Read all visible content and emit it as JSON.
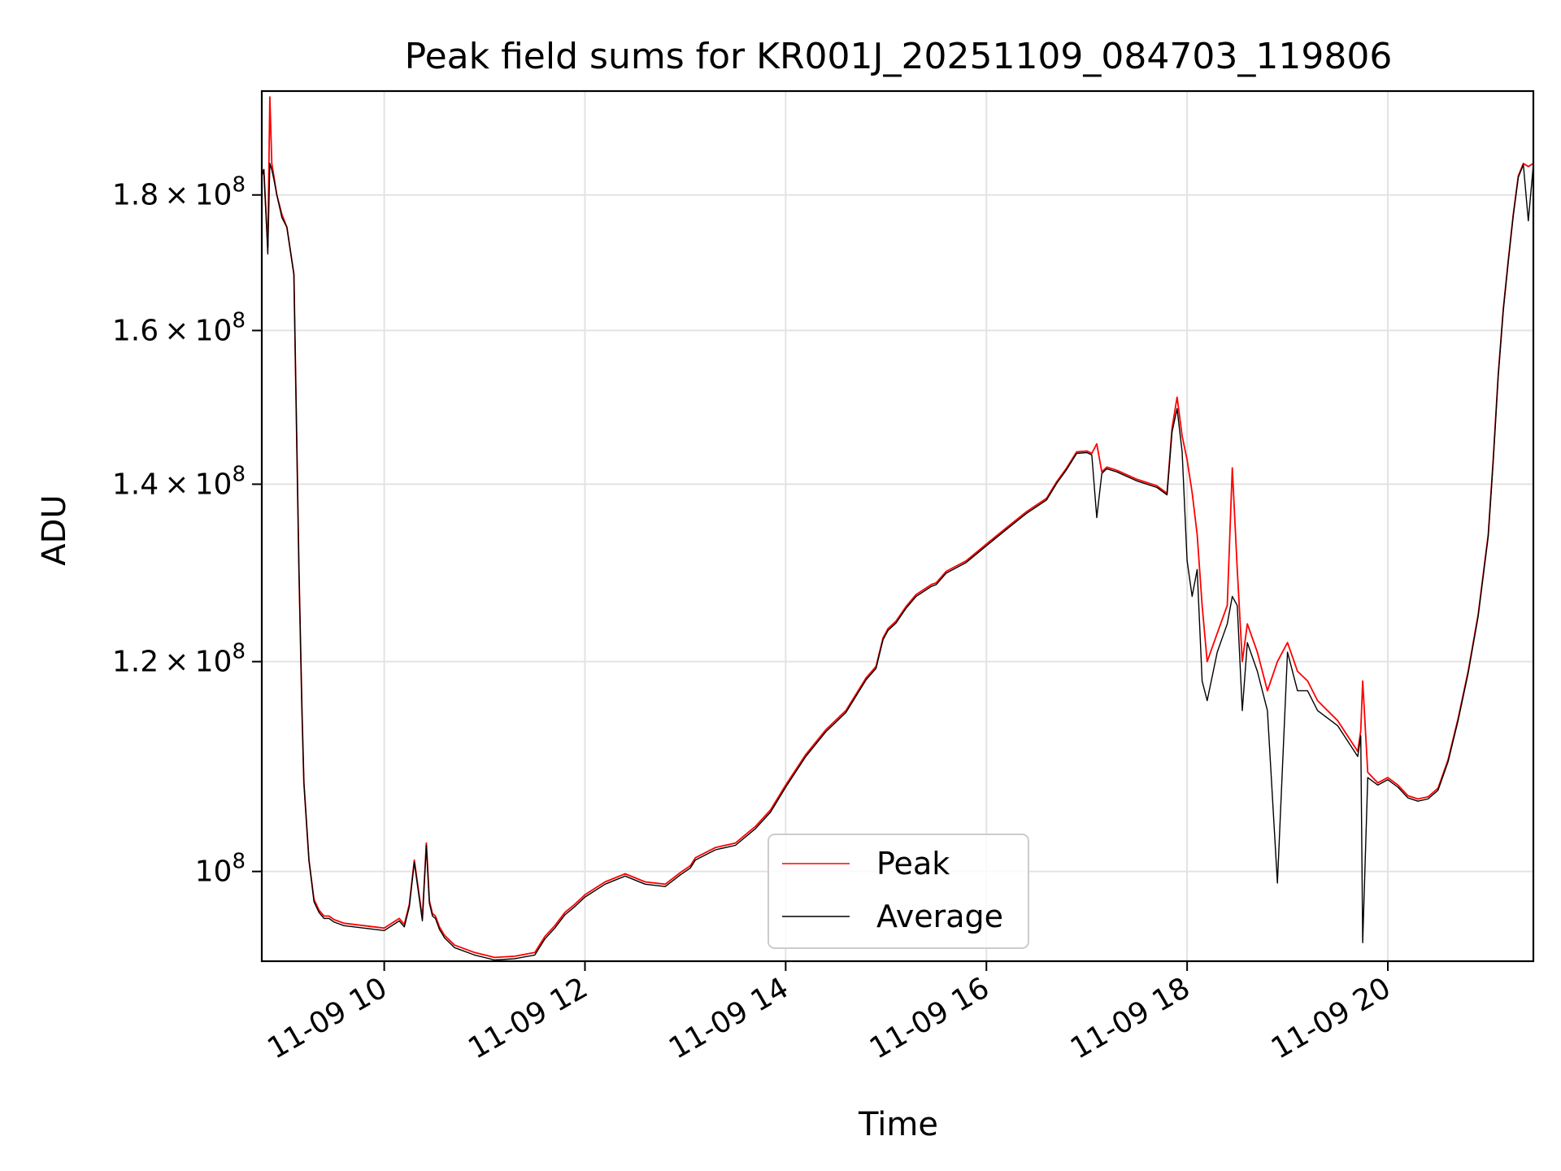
{
  "chart_data": {
    "type": "line",
    "title": "Peak field sums for KR001J_20251109_084703_119806",
    "xlabel": "Time",
    "ylabel": "ADU",
    "x_unit": "hours since 2025-11-09 00:00",
    "xlim": [
      8.78,
      21.45
    ],
    "ylim": [
      92500000,
      197000000
    ],
    "yscale": "log",
    "grid": true,
    "legend_position": "lower-center",
    "x_ticks": [
      {
        "value": 10,
        "label": "11-09 10"
      },
      {
        "value": 12,
        "label": "11-09 12"
      },
      {
        "value": 14,
        "label": "11-09 14"
      },
      {
        "value": 16,
        "label": "11-09 16"
      },
      {
        "value": 18,
        "label": "11-09 18"
      },
      {
        "value": 20,
        "label": "11-09 20"
      }
    ],
    "y_ticks": [
      {
        "value": 100000000,
        "mantissa": "",
        "exponent": "8"
      },
      {
        "value": 120000000,
        "mantissa": "1.2",
        "exponent": "8"
      },
      {
        "value": 140000000,
        "mantissa": "1.4",
        "exponent": "8"
      },
      {
        "value": 160000000,
        "mantissa": "1.6",
        "exponent": "8"
      },
      {
        "value": 180000000,
        "mantissa": "1.8",
        "exponent": "8"
      }
    ],
    "tick_prefix": "10",
    "times_symbol": "×",
    "series": [
      {
        "name": "Peak",
        "color": "#ff0000",
        "x": [
          8.78,
          8.8,
          8.84,
          8.86,
          8.88,
          8.9,
          8.93,
          8.98,
          9.03,
          9.1,
          9.15,
          9.18,
          9.2,
          9.25,
          9.3,
          9.35,
          9.4,
          9.45,
          9.5,
          9.6,
          9.8,
          10.0,
          10.15,
          10.2,
          10.25,
          10.3,
          10.38,
          10.42,
          10.45,
          10.48,
          10.51,
          10.55,
          10.6,
          10.7,
          10.9,
          11.1,
          11.3,
          11.5,
          11.6,
          11.7,
          11.8,
          11.9,
          12.0,
          12.2,
          12.4,
          12.6,
          12.8,
          12.95,
          13.05,
          13.1,
          13.3,
          13.5,
          13.7,
          13.85,
          14.0,
          14.2,
          14.4,
          14.6,
          14.8,
          14.9,
          14.97,
          15.02,
          15.1,
          15.2,
          15.3,
          15.45,
          15.5,
          15.6,
          15.8,
          16.0,
          16.2,
          16.4,
          16.6,
          16.7,
          16.8,
          16.9,
          17.0,
          17.05,
          17.1,
          17.15,
          17.2,
          17.3,
          17.5,
          17.7,
          17.8,
          17.85,
          17.9,
          17.95,
          18.0,
          18.05,
          18.1,
          18.15,
          18.2,
          18.3,
          18.4,
          18.45,
          18.5,
          18.55,
          18.6,
          18.7,
          18.8,
          18.9,
          19.0,
          19.1,
          19.2,
          19.3,
          19.5,
          19.7,
          19.73,
          19.75,
          19.8,
          19.9,
          20.0,
          20.1,
          20.2,
          20.3,
          20.4,
          20.5,
          20.6,
          20.7,
          20.8,
          20.9,
          21.0,
          21.05,
          21.1,
          21.15,
          21.2,
          21.25,
          21.3,
          21.35,
          21.4,
          21.45
        ],
        "values": [
          183000000,
          184000000,
          172000000,
          196000000,
          185000000,
          183000000,
          180000000,
          177000000,
          175000000,
          168000000,
          130000000,
          115000000,
          108000000,
          101000000,
          97600000,
          96700000,
          96200000,
          96200000,
          95900000,
          95600000,
          95400000,
          95200000,
          96000000,
          95500000,
          97200000,
          101000000,
          96000000,
          102500000,
          97500000,
          96400000,
          96200000,
          95300000,
          94600000,
          93800000,
          93200000,
          92800000,
          92900000,
          93200000,
          94500000,
          95400000,
          96500000,
          97200000,
          98000000,
          99100000,
          99800000,
          99100000,
          98900000,
          99900000,
          100500000,
          101200000,
          102100000,
          102500000,
          104000000,
          105500000,
          107800000,
          110700000,
          113100000,
          115000000,
          118300000,
          119500000,
          122500000,
          123500000,
          124300000,
          125900000,
          127200000,
          128300000,
          128500000,
          129800000,
          131000000,
          132900000,
          134800000,
          136700000,
          138300000,
          140300000,
          142000000,
          144000000,
          144100000,
          143800000,
          145000000,
          141500000,
          142100000,
          141700000,
          140600000,
          139800000,
          138900000,
          147000000,
          151000000,
          146000000,
          143000000,
          139000000,
          134000000,
          126000000,
          120000000,
          123000000,
          126000000,
          142000000,
          130000000,
          120000000,
          124000000,
          121000000,
          117000000,
          120000000,
          122000000,
          119000000,
          118000000,
          116000000,
          114000000,
          111000000,
          113000000,
          118000000,
          109000000,
          108000000,
          108500000,
          107800000,
          106800000,
          106500000,
          106700000,
          107500000,
          110200000,
          114200000,
          119000000,
          125000000,
          134000000,
          143000000,
          154000000,
          163000000,
          170000000,
          177000000,
          183000000,
          185000000,
          184500000,
          185000000
        ]
      },
      {
        "name": "Average",
        "color": "#000000",
        "x": [
          8.78,
          8.8,
          8.84,
          8.86,
          8.88,
          8.9,
          8.93,
          8.98,
          9.03,
          9.1,
          9.15,
          9.18,
          9.2,
          9.25,
          9.3,
          9.35,
          9.4,
          9.45,
          9.5,
          9.6,
          9.8,
          10.0,
          10.15,
          10.2,
          10.25,
          10.3,
          10.38,
          10.42,
          10.45,
          10.48,
          10.51,
          10.55,
          10.6,
          10.7,
          10.9,
          11.1,
          11.3,
          11.5,
          11.6,
          11.7,
          11.8,
          11.9,
          12.0,
          12.2,
          12.4,
          12.6,
          12.8,
          12.95,
          13.05,
          13.1,
          13.3,
          13.5,
          13.7,
          13.85,
          14.0,
          14.2,
          14.4,
          14.6,
          14.8,
          14.9,
          14.97,
          15.02,
          15.1,
          15.2,
          15.3,
          15.45,
          15.5,
          15.6,
          15.8,
          16.0,
          16.2,
          16.4,
          16.6,
          16.7,
          16.8,
          16.9,
          17.0,
          17.05,
          17.1,
          17.15,
          17.2,
          17.3,
          17.5,
          17.7,
          17.8,
          17.85,
          17.9,
          17.95,
          18.0,
          18.05,
          18.1,
          18.15,
          18.2,
          18.3,
          18.4,
          18.45,
          18.5,
          18.55,
          18.6,
          18.7,
          18.8,
          18.9,
          19.0,
          19.1,
          19.2,
          19.3,
          19.5,
          19.7,
          19.73,
          19.75,
          19.8,
          19.9,
          20.0,
          20.1,
          20.2,
          20.3,
          20.4,
          20.5,
          20.6,
          20.7,
          20.8,
          20.9,
          21.0,
          21.05,
          21.1,
          21.15,
          21.2,
          21.25,
          21.3,
          21.35,
          21.4,
          21.45
        ],
        "values": [
          183000000,
          184000000,
          171000000,
          185000000,
          184000000,
          182500000,
          180000000,
          176500000,
          175000000,
          168000000,
          130000000,
          115000000,
          108000000,
          101000000,
          97400000,
          96500000,
          96000000,
          96000000,
          95700000,
          95400000,
          95200000,
          95000000,
          95800000,
          95300000,
          97000000,
          100800000,
          95800000,
          102300000,
          97300000,
          96200000,
          96000000,
          95100000,
          94400000,
          93600000,
          93000000,
          92600000,
          92700000,
          93000000,
          94300000,
          95200000,
          96300000,
          97000000,
          97800000,
          98900000,
          99600000,
          98900000,
          98700000,
          99700000,
          100300000,
          101000000,
          101900000,
          102300000,
          103800000,
          105300000,
          107600000,
          110500000,
          112900000,
          114800000,
          118100000,
          119300000,
          122300000,
          123300000,
          124100000,
          125700000,
          127000000,
          128100000,
          128300000,
          129600000,
          130800000,
          132700000,
          134600000,
          136500000,
          138100000,
          140100000,
          141800000,
          143800000,
          143900000,
          143600000,
          136000000,
          141300000,
          141900000,
          141500000,
          140400000,
          139600000,
          138700000,
          146500000,
          149500000,
          144000000,
          131000000,
          127000000,
          130000000,
          118000000,
          116000000,
          121000000,
          124000000,
          127000000,
          126000000,
          115000000,
          122000000,
          119000000,
          115000000,
          99000000,
          121000000,
          117000000,
          117000000,
          115000000,
          113500000,
          110500000,
          112500000,
          94000000,
          108500000,
          107800000,
          108300000,
          107600000,
          106600000,
          106300000,
          106500000,
          107300000,
          110000000,
          114000000,
          118800000,
          124800000,
          133800000,
          142800000,
          153800000,
          162800000,
          169800000,
          176800000,
          182800000,
          184800000,
          176000000,
          184800000
        ]
      }
    ]
  }
}
